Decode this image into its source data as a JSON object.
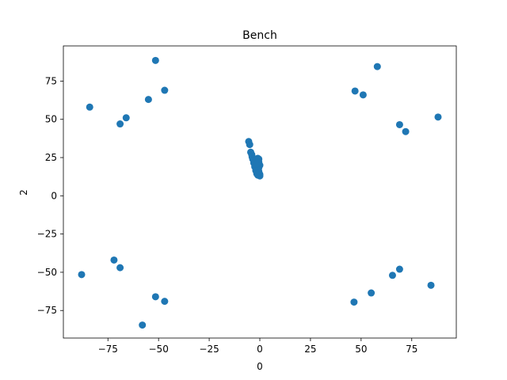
{
  "chart_data": {
    "type": "scatter",
    "title": "Bench",
    "xlabel": "0",
    "ylabel": "2",
    "xlim": [
      -97,
      97
    ],
    "ylim": [
      -93,
      98
    ],
    "x_ticks": [
      -75,
      -50,
      -25,
      0,
      25,
      50,
      75
    ],
    "y_ticks": [
      -75,
      -50,
      -25,
      0,
      25,
      50,
      75
    ],
    "x_tick_labels": [
      "−75",
      "−50",
      "−25",
      "0",
      "25",
      "50",
      "75"
    ],
    "y_tick_labels": [
      "−75",
      "−50",
      "−25",
      "0",
      "25",
      "50",
      "75"
    ],
    "grid": false,
    "marker_color": "#1f77b4",
    "series": [
      {
        "points": [
          [
            -51.5,
            88.5
          ],
          [
            -47.0,
            69.0
          ],
          [
            -55.0,
            63.0
          ],
          [
            -84.0,
            58.0
          ],
          [
            -66.0,
            51.0
          ],
          [
            -69.0,
            47.0
          ],
          [
            58.0,
            84.5
          ],
          [
            47.0,
            68.5
          ],
          [
            51.0,
            66.0
          ],
          [
            88.0,
            51.5
          ],
          [
            69.0,
            46.5
          ],
          [
            72.0,
            42.0
          ],
          [
            -72.0,
            -42.0
          ],
          [
            -69.0,
            -47.0
          ],
          [
            -88.0,
            -51.5
          ],
          [
            -51.5,
            -66.0
          ],
          [
            -47.0,
            -69.0
          ],
          [
            -58.0,
            -84.5
          ],
          [
            69.0,
            -48.0
          ],
          [
            65.5,
            -52.0
          ],
          [
            84.5,
            -58.5
          ],
          [
            55.0,
            -63.5
          ],
          [
            46.5,
            -69.5
          ],
          [
            -5.5,
            35.5
          ],
          [
            -5.0,
            33.5
          ],
          [
            -4.5,
            28.5
          ],
          [
            -4.0,
            27.0
          ],
          [
            -3.8,
            25.5
          ],
          [
            -3.5,
            24.0
          ],
          [
            -3.0,
            23.0
          ],
          [
            -3.0,
            21.5
          ],
          [
            -2.5,
            20.5
          ],
          [
            -2.5,
            19.0
          ],
          [
            -2.0,
            18.0
          ],
          [
            -2.0,
            16.5
          ],
          [
            -1.5,
            15.5
          ],
          [
            -1.5,
            14.5
          ],
          [
            -1.0,
            13.5
          ],
          [
            -1.0,
            24.5
          ],
          [
            -0.5,
            22.0
          ],
          [
            -0.5,
            18.5
          ],
          [
            -0.5,
            16.0
          ],
          [
            0.0,
            14.0
          ],
          [
            0.0,
            20.0
          ],
          [
            -1.0,
            17.0
          ],
          [
            -2.0,
            22.5
          ],
          [
            -1.5,
            21.0
          ],
          [
            -0.5,
            24.0
          ],
          [
            0.0,
            13.0
          ],
          [
            -0.5,
            15.0
          ]
        ]
      }
    ]
  }
}
